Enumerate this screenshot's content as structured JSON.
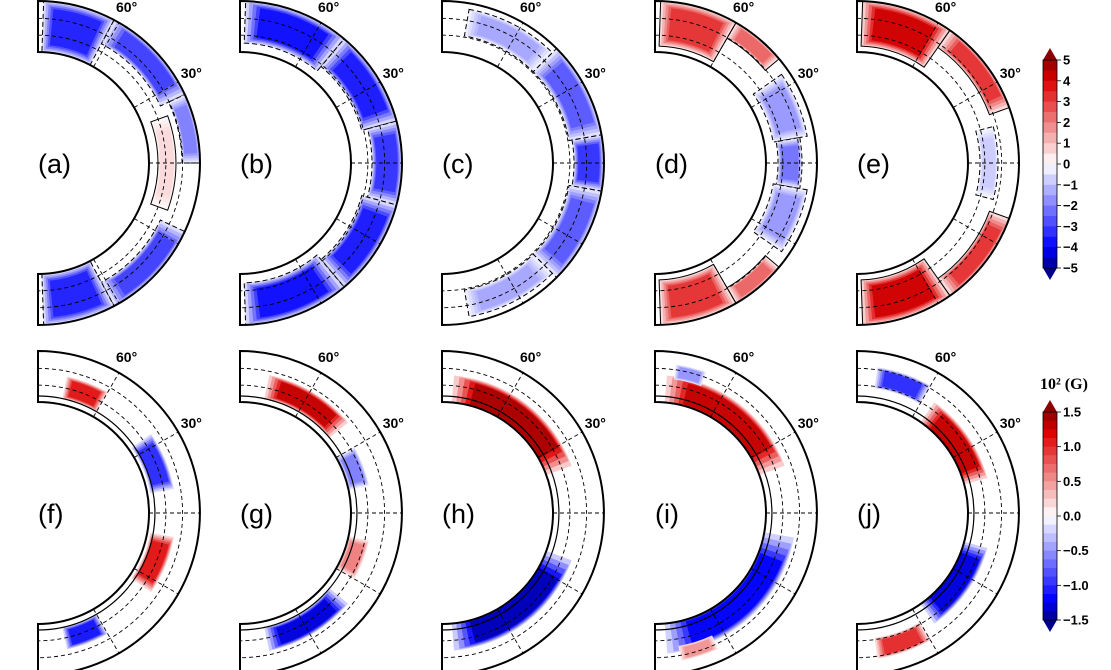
{
  "figure": {
    "rows": [
      {
        "panels": [
          {
            "label": "(a)",
            "lat_labels": [
              "60°",
              "30°"
            ],
            "pattern": [
              {
                "lat0": 62,
                "lat1": 88,
                "r0": 0.66,
                "r1": 1.0,
                "v": -3.5
              },
              {
                "lat0": 25,
                "lat1": 62,
                "r0": 0.82,
                "r1": 1.0,
                "v": -3.0
              },
              {
                "lat0": 0,
                "lat1": 25,
                "r0": 0.88,
                "r1": 1.0,
                "v": -2.0
              },
              {
                "lat0": -20,
                "lat1": 20,
                "r0": 0.72,
                "r1": 0.84,
                "v": 0.6
              },
              {
                "lat0": -62,
                "lat1": -25,
                "r0": 0.82,
                "r1": 1.0,
                "v": -3.0
              },
              {
                "lat0": -88,
                "lat1": -62,
                "r0": 0.66,
                "r1": 1.0,
                "v": -3.5
              }
            ]
          },
          {
            "label": "(b)",
            "lat_labels": [
              "60°",
              "30°"
            ],
            "pattern": [
              {
                "lat0": 50,
                "lat1": 88,
                "r0": 0.72,
                "r1": 1.0,
                "v": -3.8
              },
              {
                "lat0": 15,
                "lat1": 50,
                "r0": 0.76,
                "r1": 1.0,
                "v": -3.6
              },
              {
                "lat0": -15,
                "lat1": 15,
                "r0": 0.8,
                "r1": 1.0,
                "v": -3.2
              },
              {
                "lat0": -50,
                "lat1": -15,
                "r0": 0.76,
                "r1": 1.0,
                "v": -3.6
              },
              {
                "lat0": -88,
                "lat1": -50,
                "r0": 0.72,
                "r1": 1.0,
                "v": -3.8
              }
            ]
          },
          {
            "label": "(c)",
            "lat_labels": [
              "60°",
              "30°"
            ],
            "pattern": [
              {
                "lat0": 45,
                "lat1": 80,
                "r0": 0.78,
                "r1": 0.96,
                "v": -1.4
              },
              {
                "lat0": 10,
                "lat1": 45,
                "r0": 0.78,
                "r1": 1.0,
                "v": -2.6
              },
              {
                "lat0": -10,
                "lat1": 10,
                "r0": 0.8,
                "r1": 1.0,
                "v": -3.2
              },
              {
                "lat0": -45,
                "lat1": -10,
                "r0": 0.78,
                "r1": 1.0,
                "v": -2.6
              },
              {
                "lat0": -80,
                "lat1": -45,
                "r0": 0.78,
                "r1": 0.96,
                "v": -1.4
              }
            ]
          },
          {
            "label": "(d)",
            "lat_labels": [
              "60°",
              "30°"
            ],
            "pattern": [
              {
                "lat0": 60,
                "lat1": 88,
                "r0": 0.7,
                "r1": 1.0,
                "v": 3.2
              },
              {
                "lat0": 40,
                "lat1": 60,
                "r0": 0.88,
                "r1": 1.0,
                "v": 2.4
              },
              {
                "lat0": 10,
                "lat1": 35,
                "r0": 0.72,
                "r1": 0.95,
                "v": -1.6
              },
              {
                "lat0": -10,
                "lat1": 10,
                "r0": 0.74,
                "r1": 0.9,
                "v": -2.2
              },
              {
                "lat0": -35,
                "lat1": -10,
                "r0": 0.72,
                "r1": 0.95,
                "v": -1.6
              },
              {
                "lat0": -60,
                "lat1": -40,
                "r0": 0.88,
                "r1": 1.0,
                "v": 2.4
              },
              {
                "lat0": -88,
                "lat1": -60,
                "r0": 0.7,
                "r1": 1.0,
                "v": 3.2
              }
            ]
          },
          {
            "label": "(e)",
            "lat_labels": [
              "60°",
              "30°"
            ],
            "pattern": [
              {
                "lat0": 55,
                "lat1": 88,
                "r0": 0.7,
                "r1": 1.0,
                "v": 4.2
              },
              {
                "lat0": 20,
                "lat1": 55,
                "r0": 0.86,
                "r1": 1.0,
                "v": 3.2
              },
              {
                "lat0": -15,
                "lat1": 15,
                "r0": 0.74,
                "r1": 0.86,
                "v": -0.8
              },
              {
                "lat0": -55,
                "lat1": -20,
                "r0": 0.86,
                "r1": 1.0,
                "v": 3.2
              },
              {
                "lat0": -88,
                "lat1": -55,
                "r0": 0.7,
                "r1": 1.0,
                "v": 4.2
              }
            ]
          }
        ],
        "colorbar": {
          "ticks": [
            "5",
            "4",
            "3",
            "2",
            "1",
            "0",
            "−1",
            "−2",
            "−3",
            "−4",
            "−5"
          ],
          "unit": ""
        }
      },
      {
        "panels": [
          {
            "label": "(f)",
            "lat_labels": [
              "60°",
              "30°"
            ],
            "pattern": [
              {
                "lat0": 60,
                "lat1": 78,
                "r0": 0.7,
                "r1": 0.85,
                "v": 1.1
              },
              {
                "lat0": 10,
                "lat1": 35,
                "r0": 0.68,
                "r1": 0.84,
                "v": -1.0
              },
              {
                "lat0": -35,
                "lat1": -10,
                "r0": 0.68,
                "r1": 0.84,
                "v": 1.1
              },
              {
                "lat0": -78,
                "lat1": -60,
                "r0": 0.7,
                "r1": 0.85,
                "v": -1.1
              },
              {
                "lat0": 74,
                "lat1": 84,
                "r0": 0.62,
                "r1": 0.66,
                "v": -1.2
              },
              {
                "lat0": -84,
                "lat1": -74,
                "r0": 0.62,
                "r1": 0.66,
                "v": 1.2
              }
            ]
          },
          {
            "label": "(g)",
            "lat_labels": [
              "60°",
              "30°"
            ],
            "pattern": [
              {
                "lat0": 40,
                "lat1": 78,
                "r0": 0.7,
                "r1": 0.86,
                "v": 1.3
              },
              {
                "lat0": 12,
                "lat1": 30,
                "r0": 0.66,
                "r1": 0.8,
                "v": -0.6
              },
              {
                "lat0": -30,
                "lat1": -12,
                "r0": 0.66,
                "r1": 0.8,
                "v": 0.6
              },
              {
                "lat0": -78,
                "lat1": -40,
                "r0": 0.7,
                "r1": 0.86,
                "v": -1.3
              }
            ]
          },
          {
            "label": "(h)",
            "lat_labels": [
              "60°",
              "30°"
            ],
            "pattern": [
              {
                "lat0": 20,
                "lat1": 85,
                "r0": 0.64,
                "r1": 0.84,
                "v": 1.4
              },
              {
                "lat0": -85,
                "lat1": -20,
                "r0": 0.64,
                "r1": 0.84,
                "v": -1.4
              }
            ]
          },
          {
            "label": "(i)",
            "lat_labels": [
              "60°",
              "30°"
            ],
            "pattern": [
              {
                "lat0": 20,
                "lat1": 85,
                "r0": 0.64,
                "r1": 0.84,
                "v": 1.3
              },
              {
                "lat0": 70,
                "lat1": 82,
                "r0": 0.82,
                "r1": 0.92,
                "v": -0.5
              },
              {
                "lat0": -85,
                "lat1": -10,
                "r0": 0.64,
                "r1": 0.86,
                "v": -1.2
              },
              {
                "lat0": -80,
                "lat1": -65,
                "r0": 0.82,
                "r1": 0.92,
                "v": 0.5
              }
            ]
          },
          {
            "label": "(j)",
            "lat_labels": [
              "60°",
              "30°"
            ],
            "pattern": [
              {
                "lat0": 60,
                "lat1": 82,
                "r0": 0.76,
                "r1": 0.9,
                "v": -1.0
              },
              {
                "lat0": 15,
                "lat1": 55,
                "r0": 0.64,
                "r1": 0.82,
                "v": 1.3
              },
              {
                "lat0": -55,
                "lat1": -15,
                "r0": 0.64,
                "r1": 0.82,
                "v": -1.3
              },
              {
                "lat0": -82,
                "lat1": -60,
                "r0": 0.76,
                "r1": 0.9,
                "v": 1.0
              }
            ]
          }
        ],
        "colorbar": {
          "ticks": [
            "1.5",
            "1.0",
            "0.5",
            "0.0",
            "−0.5",
            "−1.0",
            "−1.5"
          ],
          "unit": "10² (G)"
        }
      }
    ]
  },
  "chart_data": {
    "type": "heatmap",
    "title": "",
    "description_free": true,
    "colorbars": [
      {
        "row": 1,
        "min": -5,
        "max": 5,
        "levels": [
          -5,
          -4,
          -3,
          -2,
          -1,
          0,
          1,
          2,
          3,
          4,
          5
        ]
      },
      {
        "row": 2,
        "min": -1.5,
        "max": 1.5,
        "levels": [
          -1.5,
          -1.0,
          -0.5,
          0.0,
          0.5,
          1.0,
          1.5
        ],
        "unit": "10² (G)"
      }
    ],
    "colors": {
      "negative": "#0000ff",
      "positive": "#dd0000",
      "neutral": "#ffffff",
      "dark_positive": "#8b0000",
      "dark_negative": "#00008b"
    }
  }
}
